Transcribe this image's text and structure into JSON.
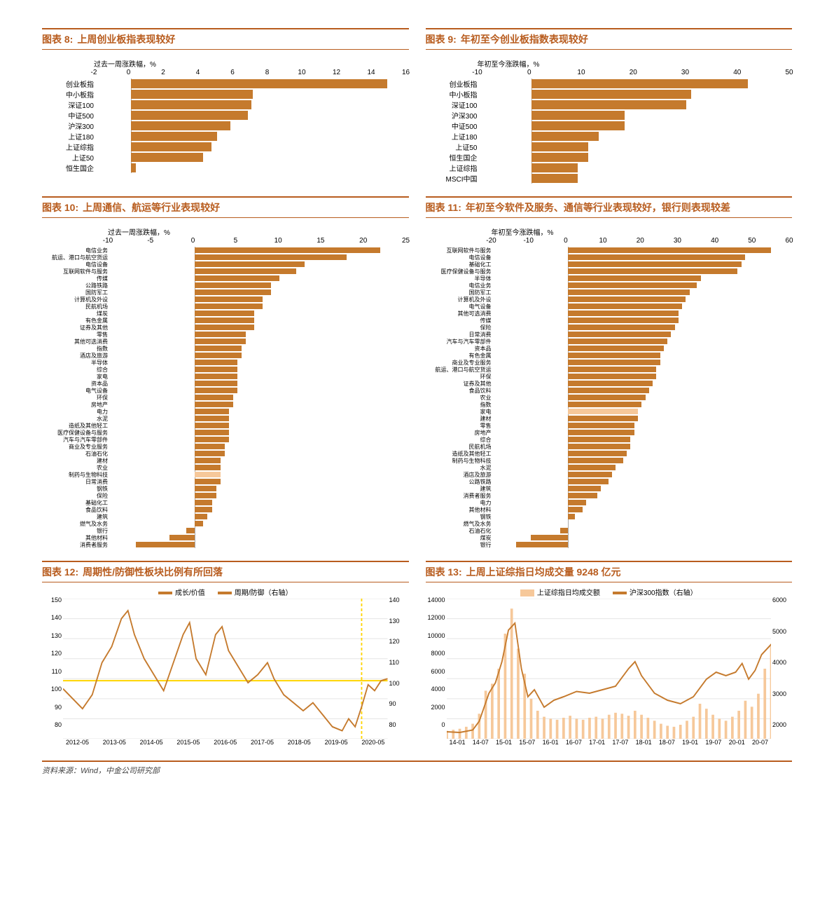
{
  "colors": {
    "accent": "#b85c1e",
    "bar": "#c57a2d",
    "bar_hilite": "#f6c89a",
    "line": "#c57a2d",
    "line2": "#c57a2d",
    "avg": "#ffd400",
    "vline": "#ffd400",
    "grid": "#e5e5e5"
  },
  "chart8": {
    "type": "hbar",
    "prefix": "图表 8:",
    "title": "上周创业板指表现较好",
    "xaxis_title": "过去一周涨跌幅，%",
    "xticks": [
      "-2",
      "0",
      "2",
      "4",
      "6",
      "8",
      "10",
      "12",
      "14",
      "16"
    ],
    "xmin": -2,
    "xmax": 16,
    "bars": [
      {
        "label": "创业板指",
        "value": 14.9
      },
      {
        "label": "中小板指",
        "value": 7.1
      },
      {
        "label": "深证100",
        "value": 7.0
      },
      {
        "label": "中证500",
        "value": 6.8
      },
      {
        "label": "沪深300",
        "value": 5.8
      },
      {
        "label": "上证180",
        "value": 5.0
      },
      {
        "label": "上证综指",
        "value": 4.7
      },
      {
        "label": "上证50",
        "value": 4.2
      },
      {
        "label": "恒生国企",
        "value": 0.3
      }
    ]
  },
  "chart9": {
    "type": "hbar",
    "prefix": "图表 9:",
    "title": "年初至今创业板指数表现较好",
    "xaxis_title": "年初至今涨跌幅，%",
    "xticks": [
      "-10",
      "0",
      "10",
      "20",
      "30",
      "40",
      "50"
    ],
    "xmin": -10,
    "xmax": 50,
    "bars": [
      {
        "label": "创业板指",
        "value": 42
      },
      {
        "label": "中小板指",
        "value": 31
      },
      {
        "label": "深证100",
        "value": 30
      },
      {
        "label": "沪深300",
        "value": 18
      },
      {
        "label": "中证500",
        "value": 18
      },
      {
        "label": "上证180",
        "value": 13
      },
      {
        "label": "上证50",
        "value": 11
      },
      {
        "label": "恒生国企",
        "value": 11
      },
      {
        "label": "上证综指",
        "value": 9
      },
      {
        "label": "MSCI中国",
        "value": 9
      }
    ]
  },
  "chart10": {
    "type": "hbar",
    "prefix": "图表 10:",
    "title": "上周通信、航运等行业表现较好",
    "xaxis_title": "过去一周涨跌幅，%",
    "xticks": [
      "-10",
      "-5",
      "0",
      "5",
      "10",
      "15",
      "20",
      "25"
    ],
    "xmin": -10,
    "xmax": 25,
    "bars": [
      {
        "label": "电信业务",
        "value": 22
      },
      {
        "label": "航运、港口与航空货运",
        "value": 18
      },
      {
        "label": "电信设备",
        "value": 13
      },
      {
        "label": "互联网软件与服务",
        "value": 12
      },
      {
        "label": "传媒",
        "value": 10
      },
      {
        "label": "公路铁路",
        "value": 9
      },
      {
        "label": "国防军工",
        "value": 9
      },
      {
        "label": "计算机及外设",
        "value": 8
      },
      {
        "label": "民航机场",
        "value": 8
      },
      {
        "label": "煤炭",
        "value": 7
      },
      {
        "label": "有色金属",
        "value": 7
      },
      {
        "label": "证券及其他",
        "value": 7
      },
      {
        "label": "零售",
        "value": 6
      },
      {
        "label": "其他可选消费",
        "value": 6
      },
      {
        "label": "指数",
        "value": 5.5
      },
      {
        "label": "酒店及旅游",
        "value": 5.5
      },
      {
        "label": "半导体",
        "value": 5
      },
      {
        "label": "综合",
        "value": 5
      },
      {
        "label": "家电",
        "value": 5
      },
      {
        "label": "资本品",
        "value": 5
      },
      {
        "label": "电气设备",
        "value": 5
      },
      {
        "label": "环保",
        "value": 4.5
      },
      {
        "label": "房地产",
        "value": 4.5
      },
      {
        "label": "电力",
        "value": 4
      },
      {
        "label": "水泥",
        "value": 4
      },
      {
        "label": "造纸及其他轻工",
        "value": 4
      },
      {
        "label": "医疗保健设备与服务",
        "value": 4
      },
      {
        "label": "汽车与汽车零部件",
        "value": 4
      },
      {
        "label": "商业及专业服务",
        "value": 3.5
      },
      {
        "label": "石油石化",
        "value": 3.5
      },
      {
        "label": "建材",
        "value": 3
      },
      {
        "label": "农业",
        "value": 3
      },
      {
        "label": "制药与生物科技",
        "value": 3,
        "hilite": true
      },
      {
        "label": "日常消费",
        "value": 3
      },
      {
        "label": "钢铁",
        "value": 2.5
      },
      {
        "label": "保险",
        "value": 2.5
      },
      {
        "label": "基础化工",
        "value": 2
      },
      {
        "label": "食品饮料",
        "value": 2
      },
      {
        "label": "建筑",
        "value": 1.5
      },
      {
        "label": "燃气及水务",
        "value": 1
      },
      {
        "label": "银行",
        "value": -1
      },
      {
        "label": "其他材料",
        "value": -3
      },
      {
        "label": "消费者服务",
        "value": -7
      }
    ]
  },
  "chart11": {
    "type": "hbar",
    "prefix": "图表 11:",
    "title": "年初至今软件及服务、通信等行业表现较好，银行则表现较差",
    "xaxis_title": "年初至今涨跌幅，%",
    "xticks": [
      "-20",
      "-10",
      "0",
      "10",
      "20",
      "30",
      "40",
      "50",
      "60"
    ],
    "xmin": -20,
    "xmax": 60,
    "bars": [
      {
        "label": "互联网软件与服务",
        "value": 55
      },
      {
        "label": "电信设备",
        "value": 48
      },
      {
        "label": "基础化工",
        "value": 47
      },
      {
        "label": "医疗保健设备与服务",
        "value": 46
      },
      {
        "label": "半导体",
        "value": 36
      },
      {
        "label": "电信业务",
        "value": 35
      },
      {
        "label": "国防军工",
        "value": 33
      },
      {
        "label": "计算机及外设",
        "value": 32
      },
      {
        "label": "电气设备",
        "value": 31
      },
      {
        "label": "其他可选消费",
        "value": 30
      },
      {
        "label": "传媒",
        "value": 30
      },
      {
        "label": "保险",
        "value": 29
      },
      {
        "label": "日常消费",
        "value": 28
      },
      {
        "label": "汽车与汽车零部件",
        "value": 27
      },
      {
        "label": "资本品",
        "value": 26
      },
      {
        "label": "有色金属",
        "value": 25
      },
      {
        "label": "商业及专业服务",
        "value": 25
      },
      {
        "label": "航运、港口与航空货运",
        "value": 24
      },
      {
        "label": "环保",
        "value": 24
      },
      {
        "label": "证券及其他",
        "value": 23
      },
      {
        "label": "食品饮料",
        "value": 22
      },
      {
        "label": "农业",
        "value": 21
      },
      {
        "label": "指数",
        "value": 20
      },
      {
        "label": "家电",
        "value": 19,
        "hilite": true
      },
      {
        "label": "建材",
        "value": 19
      },
      {
        "label": "零售",
        "value": 18
      },
      {
        "label": "房地产",
        "value": 18
      },
      {
        "label": "综合",
        "value": 17
      },
      {
        "label": "民航机场",
        "value": 17
      },
      {
        "label": "造纸及其他轻工",
        "value": 16
      },
      {
        "label": "制药与生物科技",
        "value": 15
      },
      {
        "label": "水泥",
        "value": 13
      },
      {
        "label": "酒店及旅游",
        "value": 12
      },
      {
        "label": "公路铁路",
        "value": 11
      },
      {
        "label": "建筑",
        "value": 9
      },
      {
        "label": "消费者服务",
        "value": 8
      },
      {
        "label": "电力",
        "value": 5
      },
      {
        "label": "其他材料",
        "value": 4
      },
      {
        "label": "钢铁",
        "value": 2
      },
      {
        "label": "燃气及水务",
        "value": 0
      },
      {
        "label": "石油石化",
        "value": -2
      },
      {
        "label": "煤炭",
        "value": -10
      },
      {
        "label": "银行",
        "value": -14
      }
    ]
  },
  "chart12": {
    "type": "line",
    "prefix": "图表 12:",
    "title": "周期性/防御性板块比例有所回落",
    "legend": [
      {
        "label": "成长/价值",
        "color": "#c57a2d",
        "style": "solid"
      },
      {
        "label": "周期/防御（右轴）",
        "color": "#c57a2d",
        "style": "solid",
        "thin": true
      }
    ],
    "yticks_left": [
      "150",
      "140",
      "130",
      "120",
      "110",
      "100",
      "90",
      "80"
    ],
    "yticks_right": [
      "140",
      "130",
      "120",
      "110",
      "100",
      "90",
      "80"
    ],
    "xlabels": [
      "2012-05",
      "2013-05",
      "2014-05",
      "2015-05",
      "2016-05",
      "2017-05",
      "2018-05",
      "2019-05",
      "2020-05"
    ],
    "avg_line_y": 109,
    "vline_x": 0.92,
    "series": [
      {
        "color": "#c57a2d",
        "width": 2,
        "points": [
          [
            0,
            105
          ],
          [
            0.03,
            100
          ],
          [
            0.06,
            95
          ],
          [
            0.09,
            102
          ],
          [
            0.12,
            118
          ],
          [
            0.15,
            126
          ],
          [
            0.18,
            140
          ],
          [
            0.2,
            144
          ],
          [
            0.22,
            132
          ],
          [
            0.25,
            120
          ],
          [
            0.28,
            112
          ],
          [
            0.31,
            104
          ],
          [
            0.34,
            118
          ],
          [
            0.37,
            132
          ],
          [
            0.39,
            138
          ],
          [
            0.41,
            120
          ],
          [
            0.44,
            112
          ],
          [
            0.47,
            132
          ],
          [
            0.49,
            136
          ],
          [
            0.51,
            124
          ],
          [
            0.54,
            116
          ],
          [
            0.57,
            108
          ],
          [
            0.6,
            112
          ],
          [
            0.63,
            118
          ],
          [
            0.65,
            110
          ],
          [
            0.68,
            102
          ],
          [
            0.71,
            98
          ],
          [
            0.74,
            94
          ],
          [
            0.77,
            98
          ],
          [
            0.8,
            92
          ],
          [
            0.83,
            86
          ],
          [
            0.86,
            84
          ],
          [
            0.88,
            90
          ],
          [
            0.9,
            86
          ],
          [
            0.92,
            96
          ],
          [
            0.94,
            107
          ],
          [
            0.96,
            104
          ],
          [
            0.98,
            109
          ],
          [
            1,
            110
          ]
        ]
      }
    ]
  },
  "chart13": {
    "type": "combo",
    "prefix": "图表 13:",
    "title": "上周上证综指日均成交量 9248 亿元",
    "legend": [
      {
        "label": "上证综指日均成交额",
        "color": "#f6c89a",
        "style": "area"
      },
      {
        "label": "沪深300指数（右轴）",
        "color": "#c57a2d",
        "style": "line"
      }
    ],
    "yticks_left": [
      "14000",
      "12000",
      "10000",
      "8000",
      "6000",
      "4000",
      "2000",
      "0"
    ],
    "yticks_right": [
      "6000",
      "5000",
      "4000",
      "3000",
      "2000"
    ],
    "xlabels": [
      "14-01",
      "14-07",
      "15-01",
      "15-07",
      "16-01",
      "16-07",
      "17-01",
      "17-07",
      "18-01",
      "18-07",
      "19-01",
      "19-07",
      "20-01",
      "20-07"
    ],
    "line": {
      "color": "#c57a2d",
      "width": 2,
      "points": [
        [
          0,
          2200
        ],
        [
          0.04,
          2180
        ],
        [
          0.08,
          2250
        ],
        [
          0.1,
          2500
        ],
        [
          0.13,
          3300
        ],
        [
          0.15,
          3600
        ],
        [
          0.17,
          4200
        ],
        [
          0.19,
          5100
        ],
        [
          0.21,
          5300
        ],
        [
          0.23,
          4000
        ],
        [
          0.25,
          3200
        ],
        [
          0.27,
          3400
        ],
        [
          0.3,
          2900
        ],
        [
          0.33,
          3100
        ],
        [
          0.36,
          3200
        ],
        [
          0.4,
          3350
        ],
        [
          0.44,
          3300
        ],
        [
          0.48,
          3400
        ],
        [
          0.52,
          3500
        ],
        [
          0.56,
          4000
        ],
        [
          0.58,
          4200
        ],
        [
          0.6,
          3800
        ],
        [
          0.64,
          3300
        ],
        [
          0.68,
          3100
        ],
        [
          0.72,
          3000
        ],
        [
          0.76,
          3200
        ],
        [
          0.8,
          3700
        ],
        [
          0.83,
          3900
        ],
        [
          0.86,
          3800
        ],
        [
          0.89,
          3900
        ],
        [
          0.91,
          4150
        ],
        [
          0.93,
          3700
        ],
        [
          0.95,
          3950
        ],
        [
          0.97,
          4400
        ],
        [
          1,
          4700
        ]
      ]
    },
    "bars": {
      "color": "#f6c89a",
      "points": [
        [
          0,
          800
        ],
        [
          0.02,
          900
        ],
        [
          0.04,
          1000
        ],
        [
          0.06,
          1200
        ],
        [
          0.08,
          1500
        ],
        [
          0.1,
          2500
        ],
        [
          0.12,
          4800
        ],
        [
          0.14,
          5500
        ],
        [
          0.16,
          7000
        ],
        [
          0.18,
          10500
        ],
        [
          0.2,
          13000
        ],
        [
          0.22,
          9000
        ],
        [
          0.24,
          6500
        ],
        [
          0.26,
          4000
        ],
        [
          0.28,
          2800
        ],
        [
          0.3,
          2200
        ],
        [
          0.32,
          2000
        ],
        [
          0.34,
          1900
        ],
        [
          0.36,
          2100
        ],
        [
          0.38,
          2300
        ],
        [
          0.4,
          2000
        ],
        [
          0.42,
          1900
        ],
        [
          0.44,
          2100
        ],
        [
          0.46,
          2200
        ],
        [
          0.48,
          2000
        ],
        [
          0.5,
          2400
        ],
        [
          0.52,
          2600
        ],
        [
          0.54,
          2500
        ],
        [
          0.56,
          2300
        ],
        [
          0.58,
          2800
        ],
        [
          0.6,
          2400
        ],
        [
          0.62,
          2100
        ],
        [
          0.64,
          1800
        ],
        [
          0.66,
          1500
        ],
        [
          0.68,
          1300
        ],
        [
          0.7,
          1200
        ],
        [
          0.72,
          1400
        ],
        [
          0.74,
          1800
        ],
        [
          0.76,
          2200
        ],
        [
          0.78,
          3500
        ],
        [
          0.8,
          3000
        ],
        [
          0.82,
          2400
        ],
        [
          0.84,
          2000
        ],
        [
          0.86,
          1800
        ],
        [
          0.88,
          2200
        ],
        [
          0.9,
          2800
        ],
        [
          0.92,
          3800
        ],
        [
          0.94,
          3200
        ],
        [
          0.96,
          4500
        ],
        [
          0.98,
          7000
        ],
        [
          1,
          9248
        ]
      ]
    }
  },
  "footer": "资料来源：Wind，中金公司研究部"
}
